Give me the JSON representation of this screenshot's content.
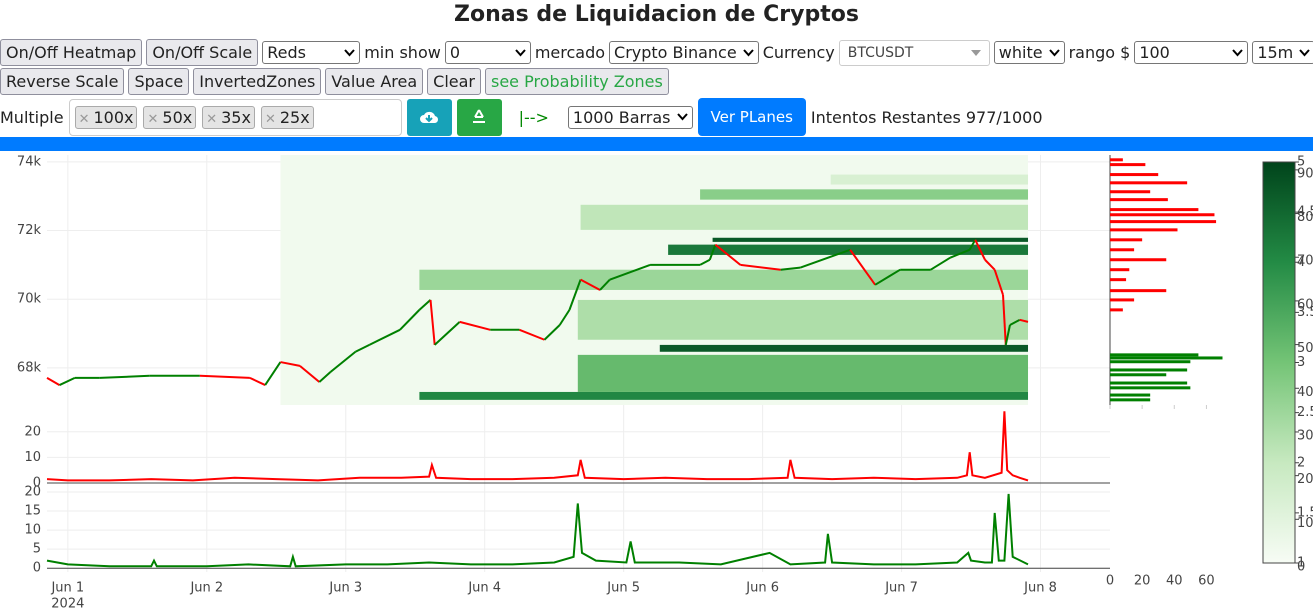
{
  "header": {
    "title": "Zonas de Liquidacion de Cryptos"
  },
  "toolbar": {
    "heatmap_button": "On/Off Heatmap",
    "scale_button": "On/Off Scale",
    "color_select": "Reds",
    "min_show_label": "min show",
    "min_show_select": "0",
    "market_label": "mercado",
    "market_select": "Crypto Binance",
    "currency_label": "Currency",
    "currency_select": "BTCUSDT",
    "theme_select": "white",
    "range_label": "rango $",
    "range_select": "100",
    "interval_select": "15m",
    "row2_buttons": [
      "Reverse Scale",
      "Space",
      "InvertedZones",
      "Value Area",
      "Clear"
    ],
    "probability_button": "see Probability Zones",
    "multiple_label": "Multiple",
    "multipliers": [
      "100x",
      "50x",
      "35x",
      "25x"
    ],
    "arrow": "|-->",
    "bars_select": "1000 Barras",
    "plans_button": "Ver PLanes",
    "attempts": "Intentos Restantes 977/1000"
  },
  "chart_data": [
    {
      "type": "price",
      "xlim": [
        -0.15,
        7.5
      ],
      "ylim": [
        66920,
        74200
      ],
      "yticks": [
        {
          "value": 68000,
          "label": "68k"
        },
        {
          "value": 70000,
          "label": "70k"
        },
        {
          "value": 72000,
          "label": "72k"
        },
        {
          "value": 74000,
          "label": "74k"
        }
      ],
      "up_color": "#008000",
      "down_color": "#ff0000",
      "x": [
        -0.15,
        -0.06,
        0.05,
        0.23,
        0.59,
        0.95,
        1.31,
        1.42,
        1.53,
        1.67,
        1.81,
        1.89,
        2.07,
        2.17,
        2.39,
        2.53,
        2.61,
        2.64,
        2.82,
        3.04,
        3.25,
        3.43,
        3.54,
        3.61,
        3.69,
        3.83,
        3.9,
        4.19,
        4.55,
        4.62,
        4.66,
        4.84,
        5.13,
        5.27,
        5.63,
        5.81,
        5.99,
        6.21,
        6.35,
        6.49,
        6.53,
        6.6,
        6.67,
        6.73,
        6.75,
        6.78,
        6.85,
        6.91
      ],
      "values": [
        67710,
        67500,
        67710,
        67710,
        67770,
        67770,
        67710,
        67500,
        68170,
        68060,
        67590,
        67880,
        68470,
        68670,
        69110,
        69690,
        69980,
        68670,
        69340,
        69110,
        69110,
        68820,
        69250,
        69690,
        70570,
        70270,
        70570,
        71000,
        71000,
        71150,
        71590,
        71000,
        70860,
        70920,
        71440,
        70420,
        70860,
        70860,
        71210,
        71440,
        71730,
        71150,
        70860,
        70130,
        68670,
        69250,
        69400,
        69340
      ],
      "zones": [
        {
          "start": 1.53,
          "end": 6.91,
          "y0": 66920,
          "y1": 74200,
          "intensity": 3
        },
        {
          "start": 2.53,
          "end": 6.91,
          "y0": 67070,
          "y1": 67300,
          "intensity": 70
        },
        {
          "start": 3.67,
          "end": 6.91,
          "y0": 67300,
          "y1": 68380,
          "intensity": 50
        },
        {
          "start": 4.26,
          "end": 6.91,
          "y0": 68470,
          "y1": 68670,
          "intensity": 85
        },
        {
          "start": 3.67,
          "end": 6.91,
          "y0": 68820,
          "y1": 69980,
          "intensity": 30
        },
        {
          "start": 2.53,
          "end": 6.91,
          "y0": 70270,
          "y1": 70860,
          "intensity": 35
        },
        {
          "start": 4.32,
          "end": 6.91,
          "y0": 71290,
          "y1": 71590,
          "intensity": 75
        },
        {
          "start": 4.64,
          "end": 6.91,
          "y0": 71670,
          "y1": 71790,
          "intensity": 85
        },
        {
          "start": 3.69,
          "end": 6.91,
          "y0": 72020,
          "y1": 72750,
          "intensity": 25
        },
        {
          "start": 4.55,
          "end": 6.91,
          "y0": 72900,
          "y1": 73200,
          "intensity": 40
        },
        {
          "start": 5.49,
          "end": 6.91,
          "y0": 73340,
          "y1": 73630,
          "intensity": 15
        }
      ],
      "colorbar": {
        "colorscale": [
          "#f7fcf5",
          "#c7e9c0",
          "#74c476",
          "#238b45",
          "#00441b"
        ],
        "lim": [
          0,
          91.8
        ],
        "ticks": [
          0,
          10,
          20,
          30,
          40,
          50,
          60,
          70,
          80,
          90
        ],
        "lim2": [
          1,
          5
        ],
        "ticks2": [
          1,
          1.5,
          2,
          2.5,
          3,
          3.5,
          4,
          4.5,
          5
        ]
      }
    },
    {
      "type": "line",
      "color": "#ff0000",
      "xlim": [
        -0.15,
        7.5
      ],
      "ylim": [
        -0.8,
        28.5
      ],
      "yticks": [
        0,
        10,
        20
      ],
      "x": [
        -0.15,
        0,
        0.3,
        0.6,
        0.9,
        1.2,
        1.5,
        1.8,
        2.1,
        2.4,
        2.6,
        2.62,
        2.65,
        2.9,
        3.2,
        3.5,
        3.67,
        3.69,
        3.72,
        4.0,
        4.3,
        4.6,
        4.9,
        5.18,
        5.2,
        5.23,
        5.5,
        5.8,
        6.1,
        6.4,
        6.47,
        6.49,
        6.51,
        6.6,
        6.72,
        6.74,
        6.76,
        6.8,
        6.85,
        6.91
      ],
      "values": [
        1.5,
        1,
        1,
        1.5,
        1,
        2,
        1.5,
        1,
        2,
        2,
        2.5,
        7,
        2,
        1.5,
        1.5,
        2,
        3,
        9,
        2,
        1.5,
        2,
        1.5,
        1.5,
        2,
        9,
        2,
        1.5,
        2,
        1.5,
        2,
        3,
        12,
        3,
        2,
        4,
        28,
        5,
        3,
        2,
        1
      ]
    },
    {
      "type": "line",
      "color": "#008000",
      "xlim": [
        -0.15,
        7.5
      ],
      "ylim": [
        -1,
        21.3
      ],
      "yticks": [
        0,
        5,
        10,
        15,
        20
      ],
      "xticks": [
        {
          "value": 0,
          "label": "Jun 1"
        },
        {
          "value": 1,
          "label": "Jun 2"
        },
        {
          "value": 2,
          "label": "Jun 3"
        },
        {
          "value": 3,
          "label": "Jun 4"
        },
        {
          "value": 4,
          "label": "Jun 5"
        },
        {
          "value": 5,
          "label": "Jun 6"
        },
        {
          "value": 6,
          "label": "Jun 7"
        },
        {
          "value": 7,
          "label": "Jun 8"
        }
      ],
      "year_label": "2024",
      "x": [
        -0.15,
        0,
        0.3,
        0.6,
        0.62,
        0.64,
        1.0,
        1.3,
        1.6,
        1.62,
        1.64,
        2.0,
        2.3,
        2.6,
        2.9,
        3.2,
        3.5,
        3.64,
        3.67,
        3.7,
        3.8,
        4.02,
        4.05,
        4.08,
        4.4,
        4.7,
        5.05,
        5.2,
        5.45,
        5.47,
        5.5,
        5.8,
        6.1,
        6.4,
        6.48,
        6.5,
        6.6,
        6.65,
        6.67,
        6.7,
        6.74,
        6.77,
        6.8,
        6.91
      ],
      "values": [
        2,
        1,
        0.5,
        0.5,
        2,
        0.5,
        0.5,
        1,
        0.5,
        3,
        0.5,
        1,
        1,
        1.5,
        1,
        1,
        1.5,
        3,
        17,
        4,
        2,
        1.5,
        7,
        1.5,
        1.5,
        1,
        4,
        1,
        1.5,
        9,
        1.5,
        1,
        1,
        1.5,
        4,
        2,
        1.5,
        1.5,
        14.5,
        2,
        2,
        19.5,
        3,
        1
      ]
    },
    {
      "type": "profile",
      "xlim": [
        0,
        84
      ],
      "ylim": [
        66920,
        74200
      ],
      "xticks": [
        0,
        20,
        40,
        60
      ],
      "series": [
        {
          "color": "#ff0000",
          "levels": [
            74060,
            73920,
            73630,
            73390,
            73130,
            72900,
            72610,
            72460,
            72260,
            72020,
            71730,
            71440,
            71150,
            70860,
            70570,
            70250,
            69980,
            69690
          ],
          "values": [
            8,
            22,
            30,
            48,
            25,
            36,
            55,
            65,
            66,
            42,
            20,
            15,
            35,
            12,
            10,
            35,
            15,
            8
          ]
        },
        {
          "color": "#008000",
          "levels": [
            68380,
            68290,
            68180,
            67940,
            67800,
            67560,
            67420,
            67210,
            67070
          ],
          "values": [
            55,
            70,
            50,
            48,
            35,
            48,
            50,
            25,
            25
          ]
        }
      ]
    }
  ]
}
